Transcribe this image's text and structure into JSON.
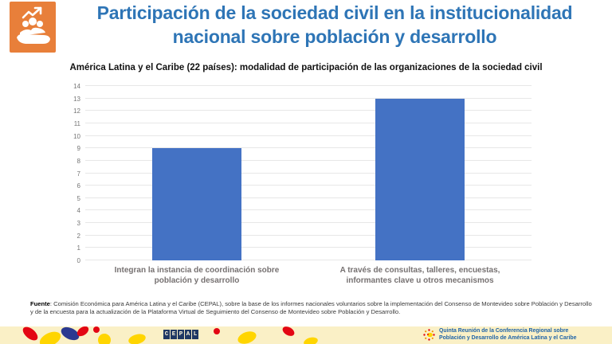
{
  "header": {
    "title_line1": "Participación de la sociedad civil en la institucionalidad",
    "title_line2": "nacional sobre población y desarrollo"
  },
  "chart_data": {
    "type": "bar",
    "title": "América Latina y el Caribe (22 países): modalidad de participación de las organizaciones de la sociedad civil",
    "categories": [
      "Integran la instancia de coordinación sobre población y desarrollo",
      "A través de consultas, talleres, encuestas, informantes clave u otros mecanismos"
    ],
    "values": [
      9,
      13
    ],
    "ylim": [
      0,
      14
    ],
    "ytick_step": 1,
    "grid": true,
    "legend": false,
    "bar_color": "#4472C4",
    "xlabel": "",
    "ylabel": ""
  },
  "footer": {
    "source_label": "Fuente",
    "source_text": ": Comisión Económica para América Latina y el Caribe (CEPAL), sobre la base de los informes nacionales voluntarios sobre la implementación del Consenso de Montevideo sobre Población y Desarrollo y de la encuesta para la actualización de la Plataforma Virtual de Seguimiento del Consenso de Montevideo sobre Población y Desarrollo."
  },
  "bottom_bar": {
    "cepal_letters": [
      "C",
      "E",
      "P",
      "A",
      "L"
    ],
    "conference_line1": "Quinta Reunión de la Conferencia Regional sobre",
    "conference_line2": "Población y Desarrollo de América Latina y el Caribe"
  },
  "colors": {
    "title_blue": "#2E75B6",
    "bar_blue": "#4472C4",
    "icon_orange": "#E87F3A",
    "band_cream": "#FAF0C6",
    "cepal_navy": "#1F3864",
    "conference_blue": "#1F63A8",
    "gridline_gray": "#E7E7E7",
    "axis_label_gray": "#767171"
  }
}
